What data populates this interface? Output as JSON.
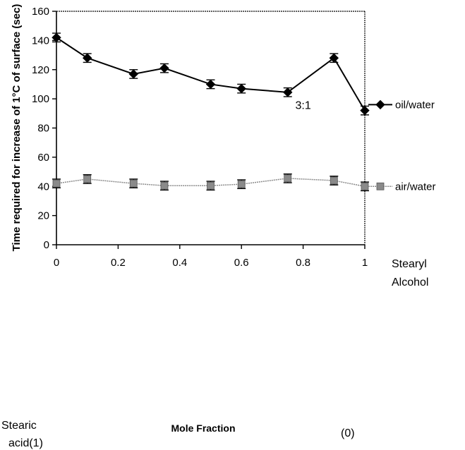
{
  "chart_data": {
    "type": "line",
    "xlabel": "Mole Fraction",
    "ylabel": "Time required for increase of 1°C of surface (sec)",
    "xlim": [
      0,
      1
    ],
    "ylim": [
      0,
      160
    ],
    "xticks": [
      0,
      0.2,
      0.4,
      0.6,
      0.8,
      1
    ],
    "xtick_labels": [
      "0",
      "0.2",
      "0.4",
      "0.6",
      "0.8",
      "1"
    ],
    "yticks": [
      0,
      20,
      40,
      60,
      80,
      100,
      120,
      140,
      160
    ],
    "ytick_labels": [
      "0",
      "20",
      "40",
      "60",
      "80",
      "100",
      "120",
      "140",
      "160"
    ],
    "x": [
      0,
      0.1,
      0.25,
      0.35,
      0.5,
      0.6,
      0.75,
      0.9,
      1
    ],
    "series": [
      {
        "name": "oil/water",
        "marker": "diamond",
        "color": "#000000",
        "values": [
          142,
          128,
          117,
          121,
          110,
          107,
          104.5,
          128,
          92
        ],
        "errors": [
          3,
          3,
          3,
          3,
          3,
          3,
          3,
          3,
          3
        ]
      },
      {
        "name": "air/water",
        "marker": "square",
        "color": "#8a8a8a",
        "values": [
          42,
          45,
          42,
          40.5,
          40.5,
          41.5,
          45.5,
          44,
          40
        ],
        "errors": [
          3,
          3,
          3,
          3,
          3,
          3,
          3,
          3,
          3
        ]
      }
    ],
    "annotations": [
      {
        "text": "3:1",
        "x": 0.8,
        "y": 93
      }
    ],
    "legend_placement": "right",
    "grid": false
  },
  "end_labels": {
    "left_top": "Stearic",
    "left_bottom": "acid(1)",
    "right_top": "Stearyl",
    "right_bottom": "Alcohol",
    "right_paren": "(0)"
  }
}
